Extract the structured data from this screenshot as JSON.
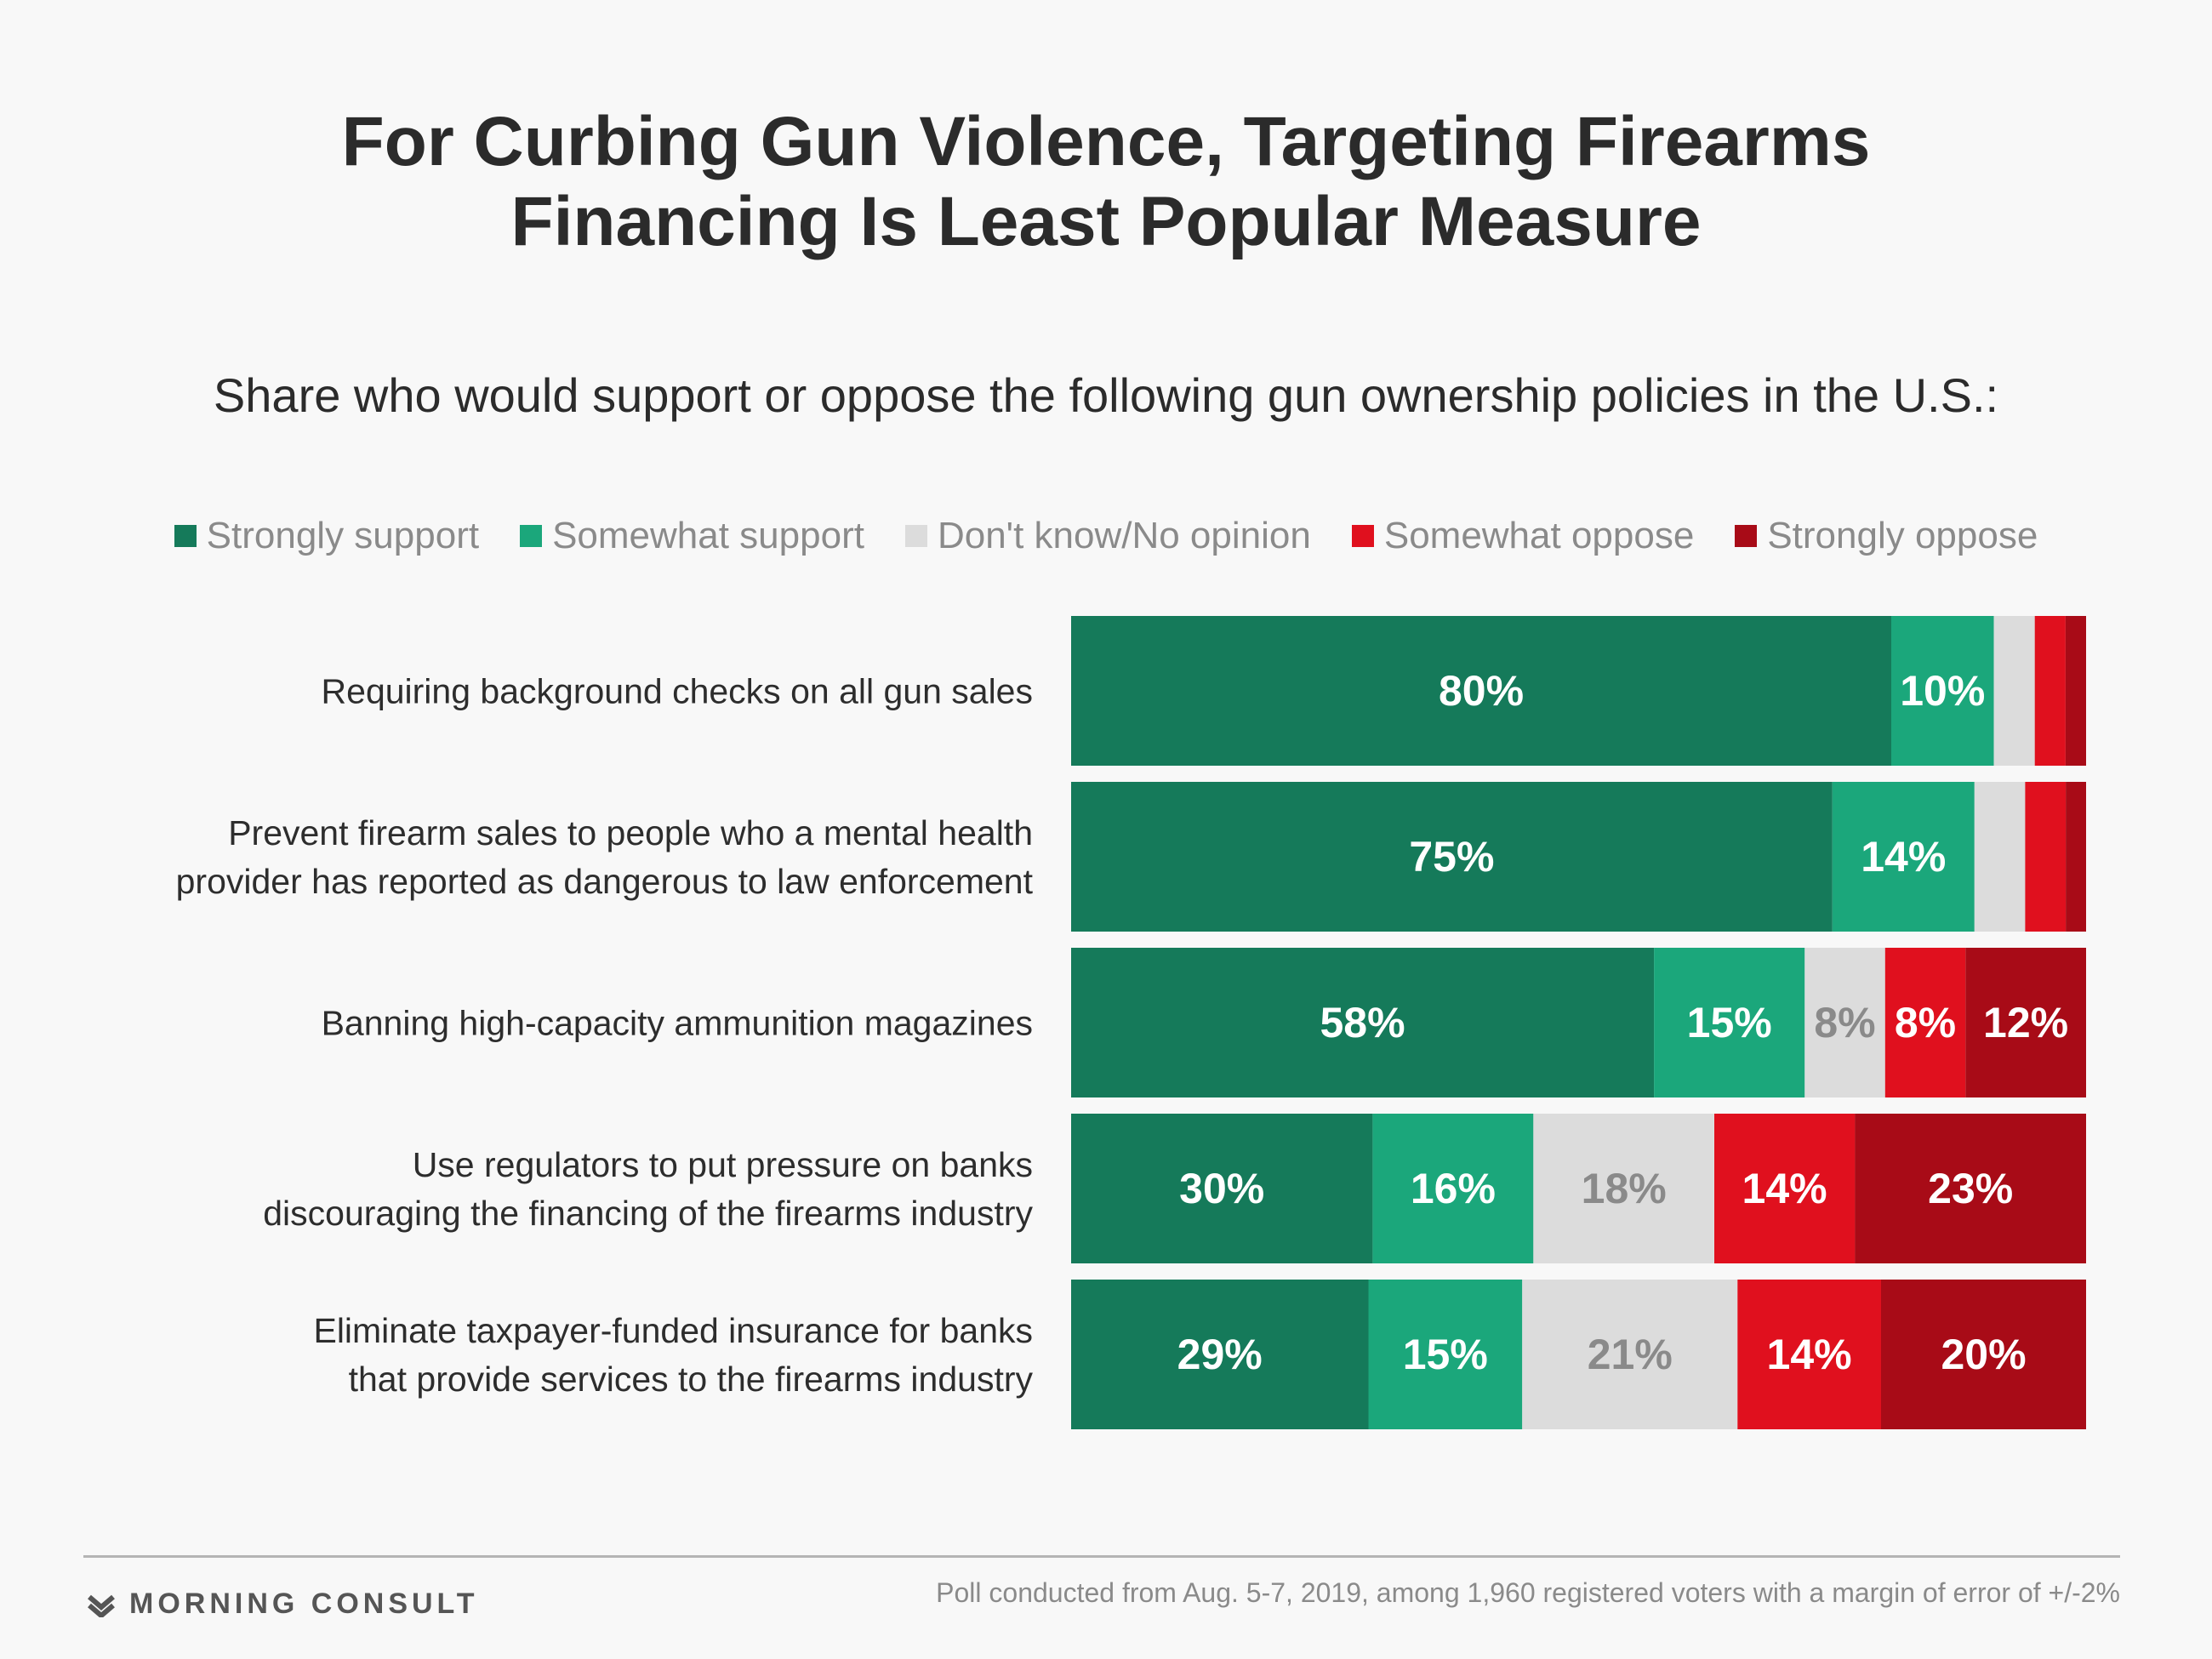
{
  "title_line1": "For Curbing Gun Violence, Targeting Firearms",
  "title_line2": "Financing Is Least Popular Measure",
  "subtitle": "Share who would support or oppose the following gun ownership policies in the U.S.:",
  "legend": [
    {
      "label": "Strongly support",
      "color": "#157a5a"
    },
    {
      "label": "Somewhat support",
      "color": "#1ba77b"
    },
    {
      "label": "Don't know/No opinion",
      "color": "#dcdcdc"
    },
    {
      "label": "Somewhat oppose",
      "color": "#e0101e"
    },
    {
      "label": "Strongly oppose",
      "color": "#a80b17"
    }
  ],
  "footer": {
    "brand": "MORNING CONSULT",
    "source": "Poll conducted from Aug. 5-7, 2019, among 1,960 registered voters with a margin of error of +/-2%"
  },
  "chart_data": {
    "type": "bar",
    "orientation": "horizontal",
    "stacked": true,
    "xlim": [
      0,
      100
    ],
    "unit": "%",
    "categories": [
      [
        "Requiring background checks on all gun sales"
      ],
      [
        "Prevent firearm sales to people who a mental health",
        "provider has reported as dangerous to law enforcement"
      ],
      [
        "Banning high-capacity ammunition magazines"
      ],
      [
        "Use regulators to put pressure on banks",
        "discouraging the financing of the firearms industry"
      ],
      [
        "Eliminate taxpayer-funded insurance for banks",
        "that provide services to the firearms industry"
      ]
    ],
    "series": [
      {
        "name": "Strongly support",
        "color": "#157a5a",
        "label_color": "#ffffff",
        "values": [
          80,
          75,
          58,
          30,
          29
        ],
        "labels": [
          "80%",
          "75%",
          "58%",
          "30%",
          "29%"
        ]
      },
      {
        "name": "Somewhat support",
        "color": "#1ba77b",
        "label_color": "#ffffff",
        "values": [
          10,
          14,
          15,
          16,
          15
        ],
        "labels": [
          "10%",
          "14%",
          "15%",
          "16%",
          "15%"
        ]
      },
      {
        "name": "Don't know/No opinion",
        "color": "#dcdcdc",
        "label_color": "#8a8a8a",
        "values": [
          4,
          5,
          8,
          18,
          21
        ],
        "labels": [
          "",
          "",
          "8%",
          "18%",
          "21%"
        ]
      },
      {
        "name": "Somewhat oppose",
        "color": "#e0101e",
        "label_color": "#ffffff",
        "values": [
          3,
          4,
          8,
          14,
          14
        ],
        "labels": [
          "",
          "",
          "8%",
          "14%",
          "14%"
        ]
      },
      {
        "name": "Strongly oppose",
        "color": "#a80b17",
        "label_color": "#ffffff",
        "values": [
          2,
          2,
          12,
          23,
          20
        ],
        "labels": [
          "",
          "",
          "12%",
          "23%",
          "20%"
        ]
      }
    ]
  }
}
